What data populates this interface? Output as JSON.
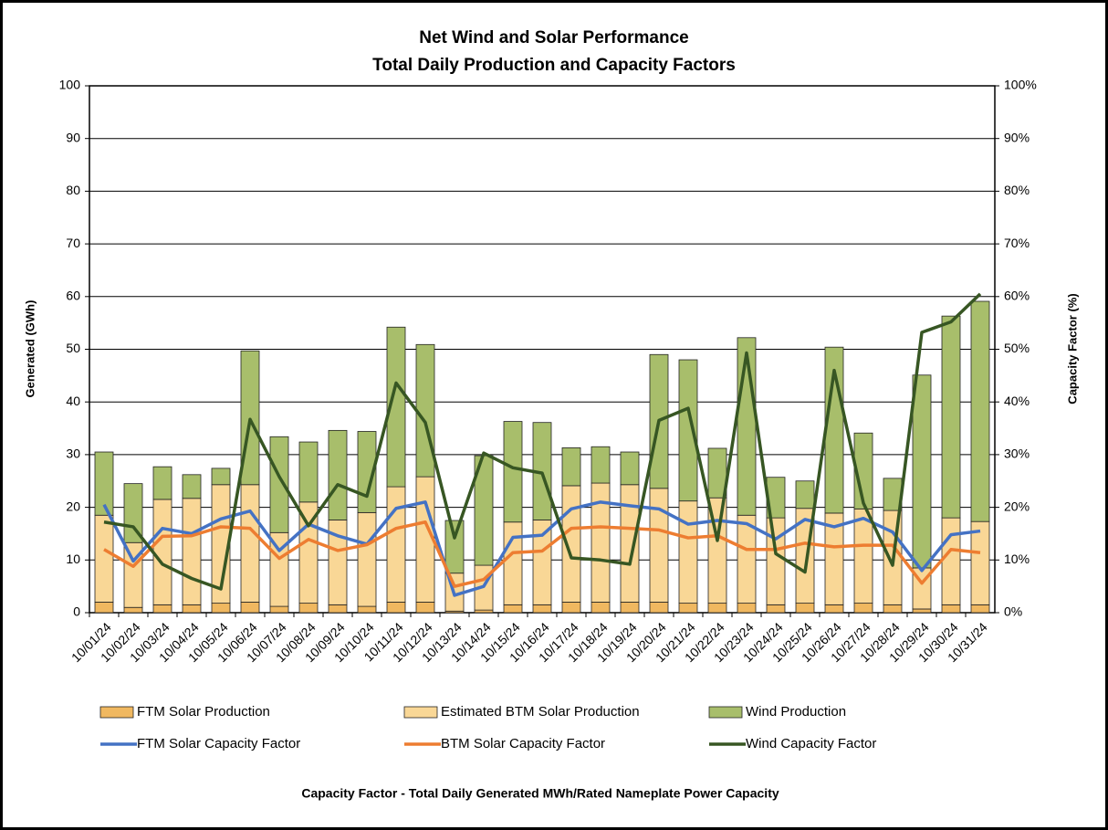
{
  "chart_data": {
    "type": "bar",
    "stacked": true,
    "title": "Net Wind and Solar Performance",
    "subtitle": "Total Daily Production and Capacity Factors",
    "y_label": "Generated (GWh)",
    "y2_label": "Capacity  Factor  (%)",
    "footnote": "Capacity Factor  - Total Daily Generated MWh/Rated Nameplate Power Capacity",
    "categories": [
      "10/01/24",
      "10/02/24",
      "10/03/24",
      "10/04/24",
      "10/05/24",
      "10/06/24",
      "10/07/24",
      "10/08/24",
      "10/09/24",
      "10/10/24",
      "10/11/24",
      "10/12/24",
      "10/13/24",
      "10/14/24",
      "10/15/24",
      "10/16/24",
      "10/17/24",
      "10/18/24",
      "10/19/24",
      "10/20/24",
      "10/21/24",
      "10/22/24",
      "10/23/24",
      "10/24/24",
      "10/25/24",
      "10/26/24",
      "10/27/24",
      "10/28/24",
      "10/29/24",
      "10/30/24",
      "10/31/24"
    ],
    "series": [
      {
        "name": "FTM Solar Production",
        "type": "bar",
        "color": "#f0b860",
        "values": [
          2,
          1,
          1.5,
          1.5,
          1.8,
          2,
          1.2,
          1.8,
          1.5,
          1.2,
          2,
          2,
          0.3,
          0.5,
          1.5,
          1.5,
          2,
          2,
          2,
          2,
          1.8,
          1.8,
          1.8,
          1.5,
          1.8,
          1.5,
          1.8,
          1.5,
          0.7,
          1.5,
          1.5
        ]
      },
      {
        "name": "Estimated BTM Solar Production",
        "type": "bar",
        "color": "#f9d796",
        "values": [
          16.5,
          12.3,
          20,
          20.2,
          22.5,
          22.3,
          14,
          19.2,
          16.1,
          17.8,
          21.9,
          23.8,
          7.2,
          8.5,
          15.7,
          16.1,
          22.1,
          22.6,
          22.3,
          21.6,
          19.4,
          20,
          16.7,
          16.5,
          18,
          17.4,
          17.9,
          17.9,
          7.8,
          16.5,
          15.8
        ]
      },
      {
        "name": "Wind Production",
        "type": "bar",
        "color": "#a8be6b",
        "values": [
          12,
          11.2,
          6.2,
          4.5,
          3.1,
          25.4,
          18.2,
          11.4,
          17,
          15.4,
          30.3,
          25.1,
          10,
          20.8,
          19.1,
          18.5,
          7.2,
          6.9,
          6.2,
          25.4,
          26.8,
          9.4,
          33.7,
          7.7,
          5.2,
          31.5,
          14.4,
          6.1,
          36.6,
          38.3,
          41.8
        ]
      },
      {
        "name": "FTM Solar Capacity Factor",
        "type": "line",
        "axis": "y2",
        "color": "#4472c4",
        "values": [
          20.5,
          9.8,
          16,
          15,
          17.8,
          19.3,
          11.8,
          16.8,
          14.6,
          13,
          19.8,
          21,
          3.3,
          5,
          14.3,
          14.7,
          19.7,
          21,
          20.3,
          19.7,
          16.8,
          17.5,
          16.9,
          14,
          17.7,
          16.3,
          17.9,
          15.3,
          8,
          14.8,
          15.5
        ]
      },
      {
        "name": "BTM Solar Capacity Factor",
        "type": "line",
        "axis": "y2",
        "color": "#ed7d31",
        "values": [
          12,
          8.8,
          14.5,
          14.6,
          16.3,
          16,
          10.3,
          13.9,
          11.8,
          12.9,
          16,
          17.2,
          5,
          6.3,
          11.4,
          11.7,
          16,
          16.3,
          16,
          15.7,
          14.2,
          14.6,
          12,
          12,
          13.2,
          12.5,
          12.8,
          12.8,
          5.6,
          12,
          11.4
        ]
      },
      {
        "name": "Wind Capacity Factor",
        "type": "line",
        "axis": "y2",
        "color": "#375623",
        "values": [
          17.2,
          16.3,
          9.2,
          6.5,
          4.5,
          36.7,
          25.8,
          16.5,
          24.3,
          22.1,
          43.6,
          36.1,
          14.2,
          30.3,
          27.5,
          26.5,
          10.4,
          10,
          9.2,
          36.5,
          38.8,
          13.7,
          49.3,
          11.2,
          7.7,
          46,
          20.8,
          9,
          53.2,
          55.2,
          60.5
        ]
      }
    ],
    "ylim": [
      0,
      100
    ],
    "yticks": [
      0,
      10,
      20,
      30,
      40,
      50,
      60,
      70,
      80,
      90,
      100
    ],
    "y2lim": [
      0,
      100
    ],
    "y2ticks": [
      {
        "value": 0,
        "label": "0%"
      },
      {
        "value": 10,
        "label": "10%"
      },
      {
        "value": 20,
        "label": "20%"
      },
      {
        "value": 30,
        "label": "30%"
      },
      {
        "value": 40,
        "label": "40%"
      },
      {
        "value": 50,
        "label": "50%"
      },
      {
        "value": 60,
        "label": "60%"
      },
      {
        "value": 70,
        "label": "70%"
      },
      {
        "value": 80,
        "label": "80%"
      },
      {
        "value": 90,
        "label": "90%"
      },
      {
        "value": 100,
        "label": "100%"
      }
    ],
    "grid": true,
    "legend": "bottom"
  }
}
